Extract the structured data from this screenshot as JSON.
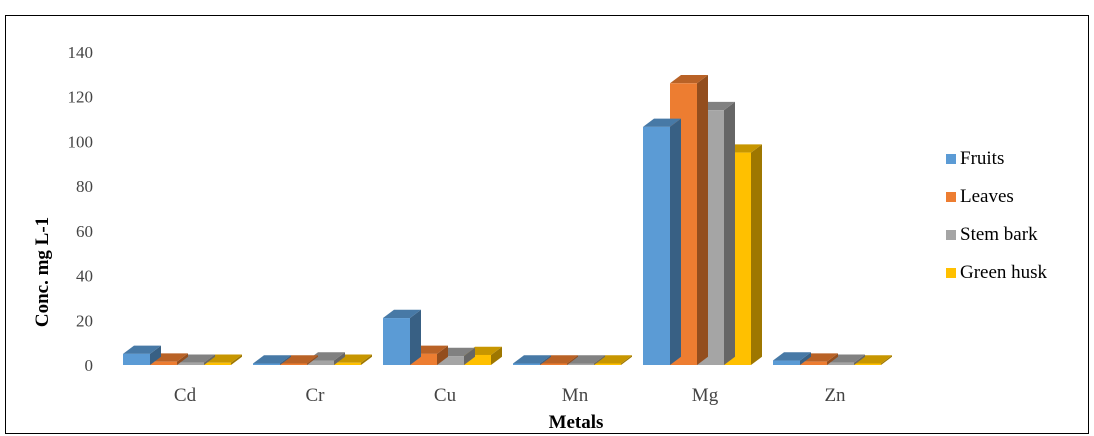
{
  "chart_data": {
    "type": "bar",
    "style": "3d-clustered-column",
    "xlabel": "Metals",
    "ylabel": "Conc. mg L-1",
    "ylim": [
      0,
      140
    ],
    "yticks": [
      "0",
      "20",
      "40",
      "60",
      "80",
      "100",
      "120",
      "140"
    ],
    "categories": [
      "Cd",
      "Cr",
      "Cu",
      "Mn",
      "Mg",
      "Zn"
    ],
    "series": [
      {
        "name": "Fruits",
        "color": "#5B9BD5",
        "values": [
          5,
          0.3,
          21,
          0.3,
          106.5,
          2
        ]
      },
      {
        "name": "Leaves",
        "color": "#ED7D31",
        "values": [
          1.5,
          0.3,
          5,
          0.3,
          126,
          1.5
        ]
      },
      {
        "name": "Stem bark",
        "color": "#A5A5A5",
        "values": [
          1,
          2,
          4,
          0.5,
          114,
          1
        ]
      },
      {
        "name": "Green husk",
        "color": "#FFC000",
        "values": [
          1,
          1,
          4.5,
          0.3,
          95,
          0.5
        ]
      }
    ],
    "grid": false,
    "legend_position": "right"
  }
}
